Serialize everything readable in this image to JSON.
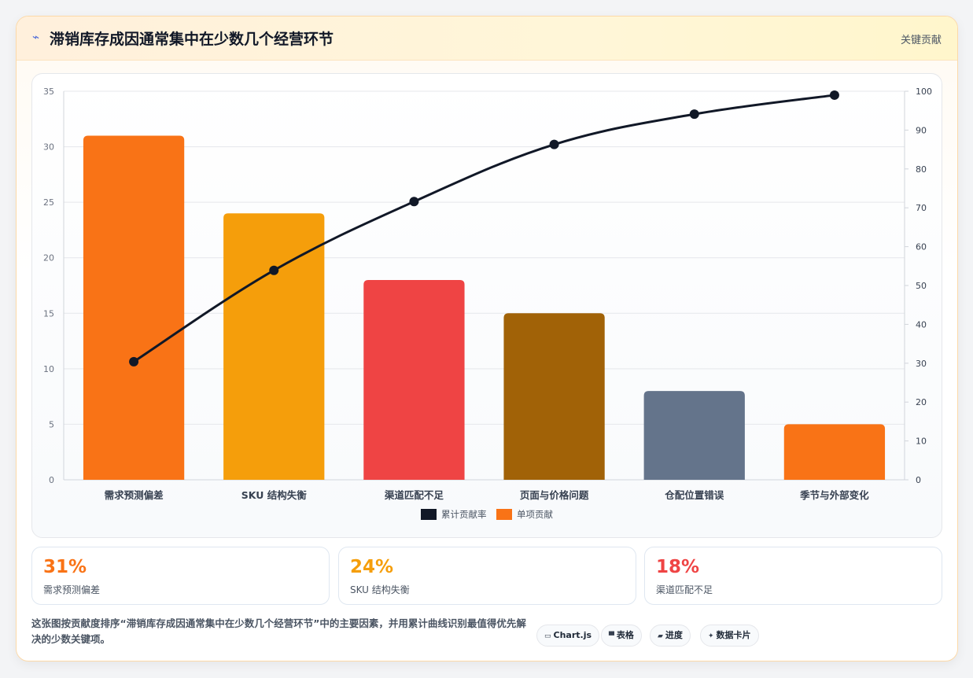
{
  "header": {
    "icon": "lightning-icon",
    "title": "滞销库存成因通常集中在少数几个经营环节",
    "tag": "关键贡献"
  },
  "chart_data": {
    "type": "bar",
    "categories": [
      "需求预测偏差",
      "SKU 结构失衡",
      "渠道匹配不足",
      "页面与价格问题",
      "仓配位置错误",
      "季节与外部变化"
    ],
    "series": [
      {
        "name": "单项贡献",
        "type": "bar",
        "axis": "left",
        "values": [
          31,
          24,
          18,
          15,
          8,
          5
        ],
        "colors": [
          "#f97316",
          "#f59e0b",
          "#ef4444",
          "#a16207",
          "#64748b",
          "#f97316"
        ]
      },
      {
        "name": "累计贡献率",
        "type": "line",
        "axis": "right",
        "values": [
          30.4,
          53.9,
          71.6,
          86.3,
          94.1,
          99.0
        ],
        "color": "#111827"
      }
    ],
    "ylim_left": [
      0,
      35
    ],
    "yticks_left": [
      0,
      5,
      10,
      15,
      20,
      25,
      30,
      35
    ],
    "ylim_right": [
      0,
      100
    ],
    "yticks_right": [
      0,
      10,
      20,
      30,
      40,
      50,
      60,
      70,
      80,
      90,
      100
    ],
    "grid": true,
    "legend": [
      {
        "label": "累计贡献率",
        "color": "#111827"
      },
      {
        "label": "单项贡献",
        "color": "#f97316"
      }
    ],
    "legend_position": "bottom"
  },
  "stats": [
    {
      "value": "31%",
      "label": "需求预测偏差",
      "color": "#f97316"
    },
    {
      "value": "24%",
      "label": "SKU 结构失衡",
      "color": "#f59e0b"
    },
    {
      "value": "18%",
      "label": "渠道匹配不足",
      "color": "#ef4444"
    }
  ],
  "description": "这张图按贡献度排序“滞销库存成因通常集中在少数几个经营环节”中的主要因素，并用累计曲线识别最值得优先解决的少数关键项。",
  "pills": [
    {
      "icon": "▭",
      "label": "Chart.js"
    },
    {
      "icon": "▀",
      "label": "表格"
    },
    {
      "icon": "▰",
      "label": "进度"
    },
    {
      "icon": "✦",
      "label": "数据卡片"
    }
  ]
}
